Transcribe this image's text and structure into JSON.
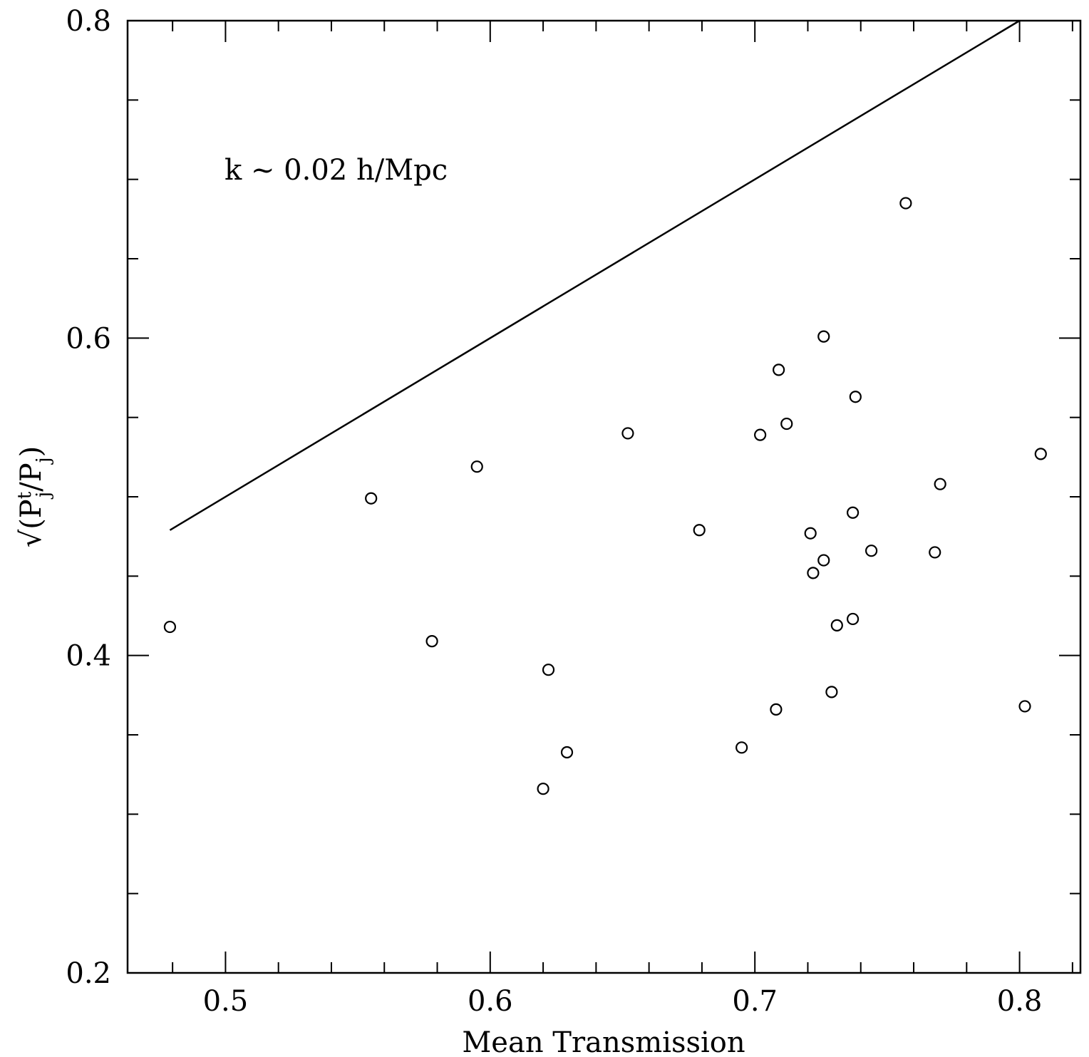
{
  "chart_data": {
    "type": "scatter",
    "title": "",
    "xlabel": "Mean Transmission",
    "ylabel": "√(P",
    "ylabel_parts": {
      "prefix": "√(P",
      "sup": "t",
      "sub1": "j",
      "mid": "/P",
      "sub2": "j",
      "suffix": ")"
    },
    "xlim": [
      0.463,
      0.823
    ],
    "ylim": [
      0.2,
      0.8
    ],
    "x_ticks": [
      0.5,
      0.6,
      0.7,
      0.8
    ],
    "x_tick_labels": [
      "0.5",
      "0.6",
      "0.7",
      "0.8"
    ],
    "y_ticks": [
      0.2,
      0.4,
      0.6,
      0.8
    ],
    "y_tick_labels": [
      "0.2",
      "0.4",
      "0.6",
      "0.8"
    ],
    "annotation": "k ~ 0.02 h/Mpc",
    "grid": false,
    "series": [
      {
        "name": "points",
        "marker": "open-circle",
        "points": [
          [
            0.479,
            0.418
          ],
          [
            0.555,
            0.499
          ],
          [
            0.578,
            0.409
          ],
          [
            0.595,
            0.519
          ],
          [
            0.622,
            0.391
          ],
          [
            0.62,
            0.316
          ],
          [
            0.629,
            0.339
          ],
          [
            0.652,
            0.54
          ],
          [
            0.679,
            0.479
          ],
          [
            0.695,
            0.342
          ],
          [
            0.702,
            0.539
          ],
          [
            0.708,
            0.366
          ],
          [
            0.709,
            0.58
          ],
          [
            0.712,
            0.546
          ],
          [
            0.721,
            0.477
          ],
          [
            0.722,
            0.452
          ],
          [
            0.726,
            0.601
          ],
          [
            0.726,
            0.46
          ],
          [
            0.729,
            0.377
          ],
          [
            0.731,
            0.419
          ],
          [
            0.737,
            0.49
          ],
          [
            0.737,
            0.423
          ],
          [
            0.738,
            0.563
          ],
          [
            0.744,
            0.466
          ],
          [
            0.757,
            0.685
          ],
          [
            0.768,
            0.465
          ],
          [
            0.77,
            0.508
          ],
          [
            0.802,
            0.368
          ],
          [
            0.808,
            0.527
          ]
        ]
      },
      {
        "name": "line",
        "type": "line",
        "points": [
          [
            0.479,
            0.479
          ],
          [
            0.8,
            0.8
          ]
        ]
      }
    ]
  }
}
